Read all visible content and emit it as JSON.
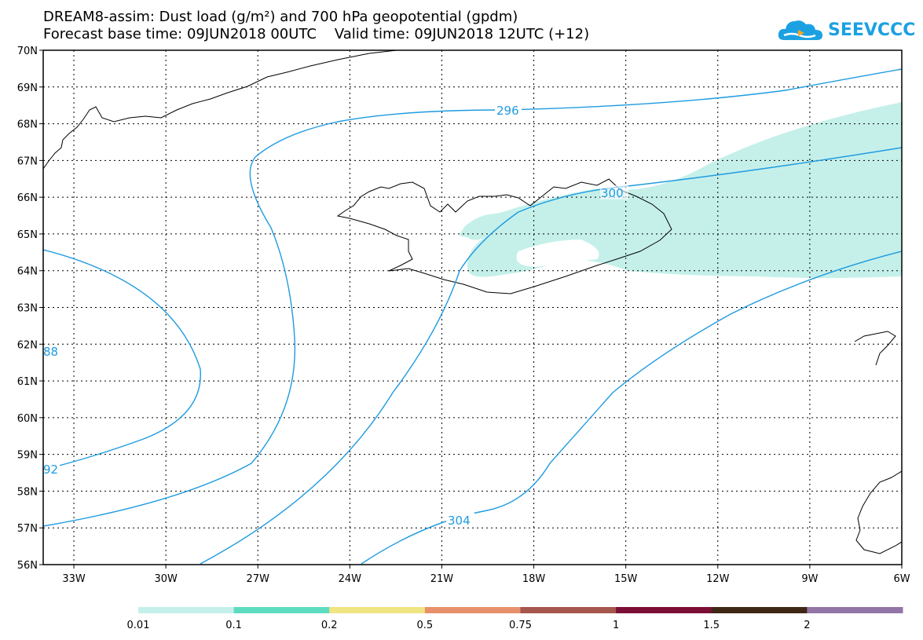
{
  "title": {
    "line1": "DREAM8-assim: Dust load (g/m²) and 700 hPa geopotential (gpdm)",
    "line2": "Forecast base time: 09JUN2018 00UTC    Valid time: 09JUN2018 12UTC (+12)"
  },
  "logo": {
    "text": "SEEVCCC",
    "icon": "cloud-icon",
    "color": "#1ba1e2"
  },
  "map": {
    "lat_labels": [
      "70N",
      "69N",
      "68N",
      "67N",
      "66N",
      "65N",
      "64N",
      "63N",
      "62N",
      "61N",
      "60N",
      "59N",
      "58N",
      "57N",
      "56N"
    ],
    "lon_labels": [
      "33W",
      "30W",
      "27W",
      "24W",
      "21W",
      "18W",
      "15W",
      "12W",
      "9W",
      "6W"
    ],
    "lat_range": [
      56,
      70
    ],
    "lon_range": [
      -34.0,
      -6.0
    ],
    "contour_color": "#1e9be0",
    "contour_labels": [
      "296",
      "300",
      "304",
      "88",
      "92"
    ],
    "dust_fill_color": "#c5f0ea"
  },
  "colorbar": {
    "segments": [
      {
        "color": "#c5f0ea"
      },
      {
        "color": "#5ddcc0"
      },
      {
        "color": "#f0e483"
      },
      {
        "color": "#e8906c"
      },
      {
        "color": "#a5574e"
      },
      {
        "color": "#7c0f35"
      },
      {
        "color": "#3e2714"
      },
      {
        "color": "#9275a5"
      }
    ],
    "labels": [
      "0.01",
      "0.1",
      "0.2",
      "0.5",
      "0.75",
      "1",
      "1.5",
      "2"
    ]
  }
}
